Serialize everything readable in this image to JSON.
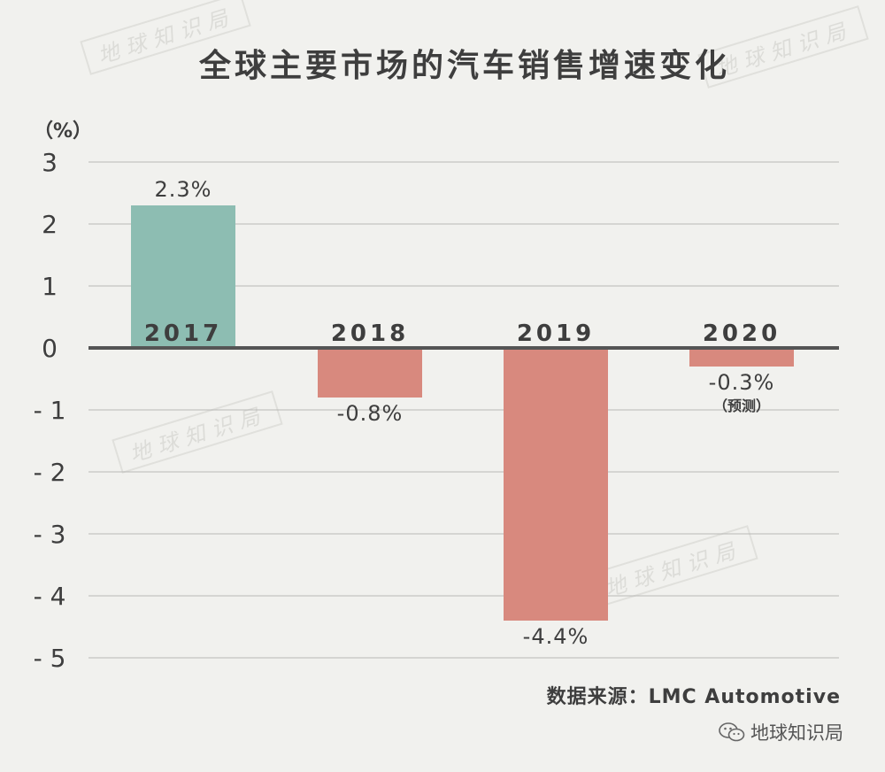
{
  "watermark": {
    "text": "地球知识局"
  },
  "brand": {
    "name": "地球知识局",
    "icon": "wechat-icon"
  },
  "colors": {
    "background": "#f1f1ee",
    "positive": "#8dbdb2",
    "negative": "#d8897e",
    "grid": "#b9b9b6",
    "zero_line": "#555555",
    "text": "#3e3e3e"
  },
  "chart_data": {
    "type": "bar",
    "title": "全球主要市场的汽车销售增速变化",
    "ylabel": "（%）",
    "xlabel": "",
    "ylim": [
      -5,
      3
    ],
    "yticks": [
      3,
      2,
      1,
      0,
      -1,
      -2,
      -3,
      -4,
      -5
    ],
    "ytick_labels": [
      "3",
      "2",
      "1",
      "0",
      "- 1",
      "- 2",
      "- 3",
      "- 4",
      "- 5"
    ],
    "categories": [
      "2017",
      "2018",
      "2019",
      "2020"
    ],
    "values": [
      2.3,
      -0.8,
      -4.4,
      -0.3
    ],
    "data_labels": [
      "2.3%",
      "-0.8%",
      "-4.4%",
      "-0.3%"
    ],
    "notes": [
      "",
      "",
      "",
      "（预测）"
    ],
    "grid": true,
    "source": "数据来源：LMC Automotive"
  }
}
